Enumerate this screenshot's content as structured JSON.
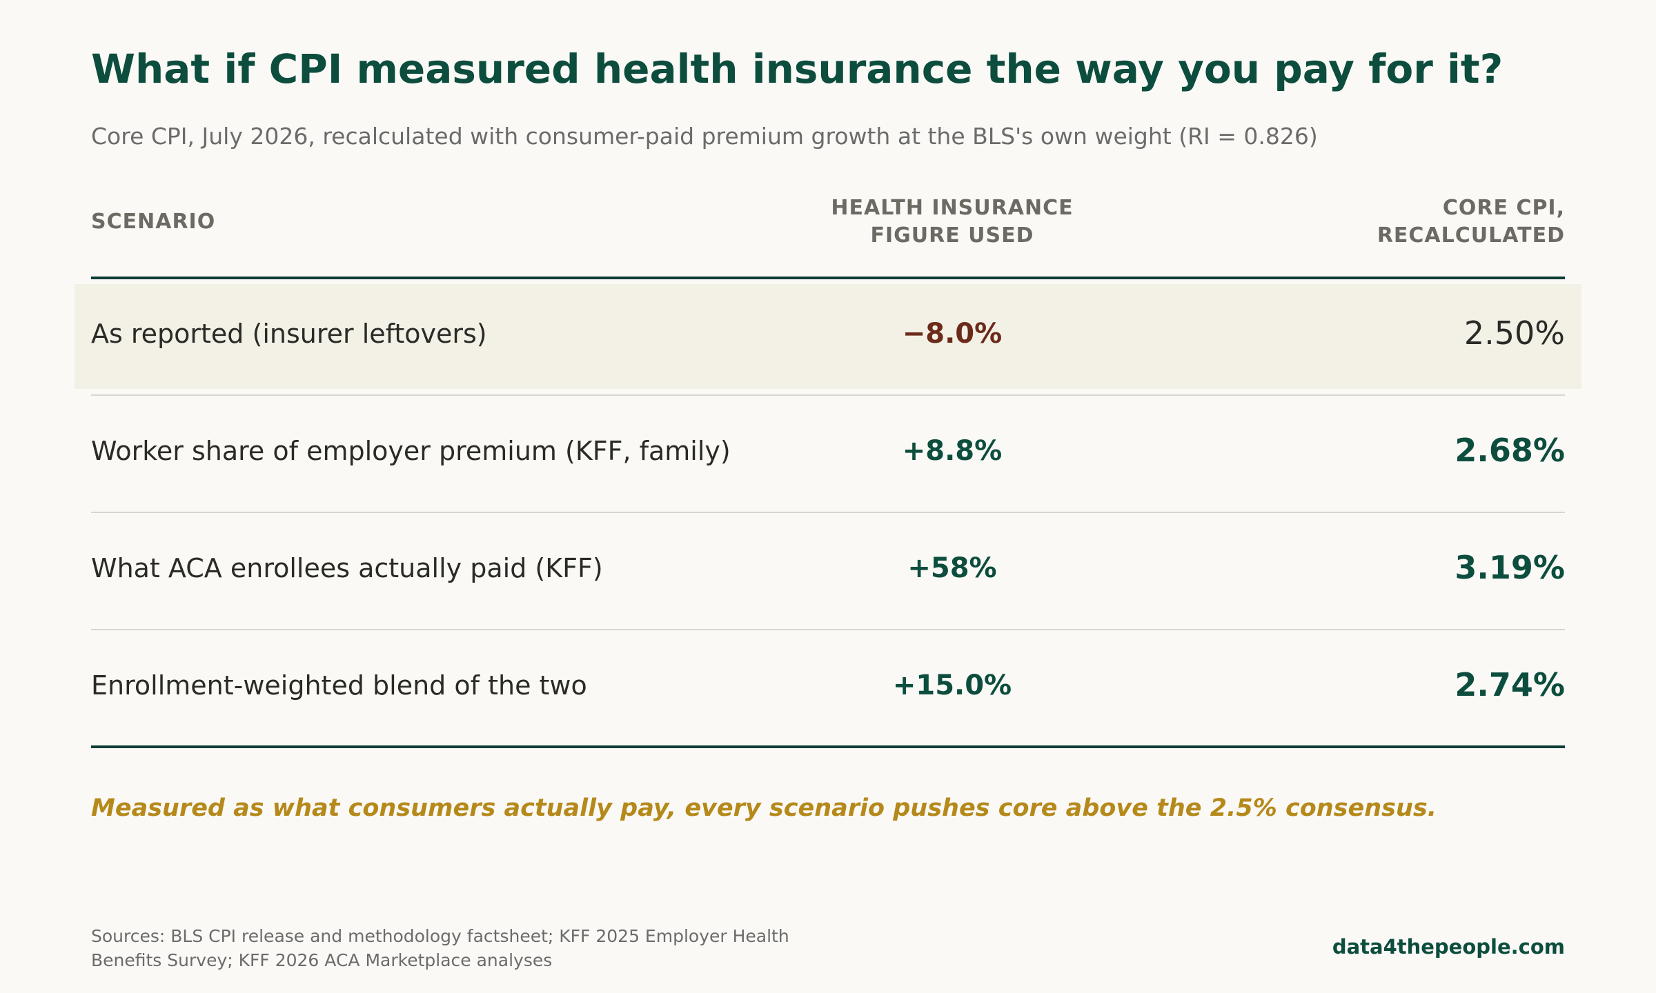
{
  "title": "What if CPI measured health insurance the way you pay for it?",
  "subtitle": "Core CPI, July 2026, recalculated with consumer-paid premium growth at the BLS's own weight (RI = 0.826)",
  "chart_data": {
    "type": "table",
    "columns": [
      "SCENARIO",
      "HEALTH INSURANCE FIGURE USED",
      "CORE CPI, RECALCULATED"
    ],
    "column_lines": {
      "c2": [
        "HEALTH INSURANCE",
        "FIGURE USED"
      ],
      "c3": [
        "CORE CPI,",
        "RECALCULATED"
      ]
    },
    "rows": [
      {
        "scenario": "As reported (insurer leftovers)",
        "health_insurance": "−8.0%",
        "core_cpi": "2.50%",
        "highlighted": true
      },
      {
        "scenario": "Worker share of employer premium (KFF, family)",
        "health_insurance": "+8.8%",
        "core_cpi": "2.68%",
        "highlighted": false
      },
      {
        "scenario": "What ACA enrollees actually paid (KFF)",
        "health_insurance": "+58%",
        "core_cpi": "3.19%",
        "highlighted": false
      },
      {
        "scenario": "Enrollment-weighted blend of the two",
        "health_insurance": "+15.0%",
        "core_cpi": "2.74%",
        "highlighted": false
      }
    ],
    "values": {
      "health_insurance_pct": [
        -8.0,
        8.8,
        58,
        15.0
      ],
      "core_cpi_pct": [
        2.5,
        2.68,
        3.19,
        2.74
      ]
    },
    "colors": {
      "negative": "#6b2a1a",
      "positive": "#0d4d3d",
      "highlight_bg": "#f3f1e6",
      "callout": "#b5891a"
    }
  },
  "callout": "Measured as what consumers actually pay, every scenario pushes core above the 2.5% consensus.",
  "sources_line1": "Sources: BLS CPI release and methodology factsheet; KFF 2025 Employer Health",
  "sources_line2": "Benefits Survey; KFF 2026 ACA Marketplace analyses",
  "brand": "data4thepeople.com"
}
